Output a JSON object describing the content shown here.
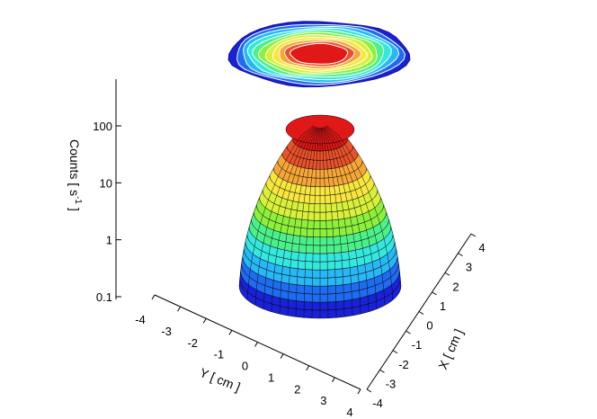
{
  "chart_data": {
    "type": "surface3d",
    "projection": "contour-on-top",
    "z_axis": {
      "label": "Counts [ s",
      "label_exponent": "-1",
      "label_close": " ]",
      "scale": "log",
      "range": [
        0.1,
        100
      ],
      "ticks": [
        "0.1",
        "1",
        "10",
        "100"
      ]
    },
    "y_axis": {
      "label": "Y [ cm ]",
      "range": [
        -4,
        4
      ],
      "ticks": [
        "-4",
        "-3",
        "-2",
        "-1",
        "0",
        "1",
        "2",
        "3",
        "4"
      ]
    },
    "x_axis": {
      "label": "X [ cm ]",
      "range": [
        -4,
        4
      ],
      "ticks": [
        "-4",
        "-3",
        "-2",
        "-1",
        "0",
        "1",
        "2",
        "3",
        "4"
      ]
    },
    "surface_peak_counts": 100,
    "surface_base_counts": 0.1,
    "colormap": [
      "#1a22d8",
      "#1f6cf0",
      "#27b8f5",
      "#34e8e0",
      "#4cf08a",
      "#8cf03c",
      "#d8f03a",
      "#f8e640",
      "#f5a638",
      "#e8522a",
      "#e01818"
    ]
  }
}
